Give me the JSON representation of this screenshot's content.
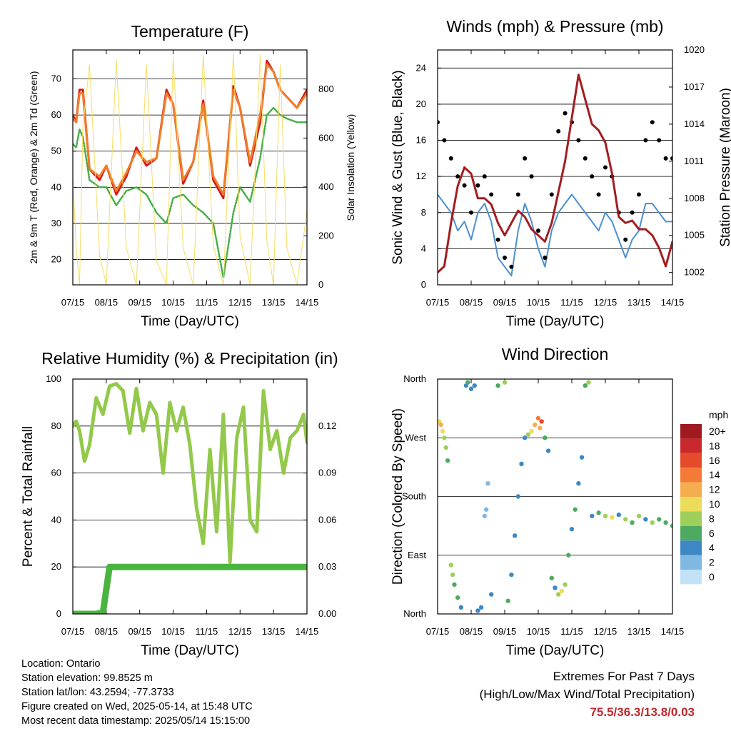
{
  "chart_data": [
    {
      "type": "line",
      "title": "Temperature (F)",
      "xlabel": "Time (Day/UTC)",
      "ylabel": "2m & 9m T (Red, Orange) & 2m Td (Green)",
      "ylabel_right": "Solar Insolation (Yellow)",
      "ylim": [
        13,
        78
      ],
      "ylim_right": [
        0,
        960
      ],
      "x_ticks": [
        "07/15",
        "08/15",
        "09/15",
        "10/15",
        "11/15",
        "12/15",
        "13/15",
        "14/15"
      ],
      "y_ticks": [
        20,
        30,
        40,
        50,
        60,
        70
      ],
      "y_ticks_right": [
        0,
        200,
        400,
        600,
        800
      ],
      "x": [
        0,
        0.1,
        0.2,
        0.3,
        0.5,
        0.8,
        1.0,
        1.3,
        1.6,
        1.9,
        2.2,
        2.5,
        2.8,
        3.0,
        3.3,
        3.6,
        3.9,
        4.2,
        4.5,
        4.8,
        5.0,
        5.3,
        5.6,
        5.8,
        6.0,
        6.2,
        6.4,
        6.7,
        7.0
      ],
      "series": [
        {
          "name": "2m T",
          "color": "#d7191c",
          "values": [
            60,
            58,
            67,
            67,
            45,
            42,
            46,
            38,
            43,
            51,
            46,
            48,
            67,
            63,
            41,
            47,
            64,
            42,
            37,
            68,
            62,
            46,
            58,
            75,
            72,
            67,
            65,
            62,
            67
          ]
        },
        {
          "name": "9m T",
          "color": "#f07d28",
          "values": [
            59,
            58,
            66,
            66,
            45,
            43,
            46,
            39,
            44,
            50,
            47,
            48,
            66,
            63,
            42,
            47,
            63,
            43,
            38,
            67,
            62,
            47,
            60,
            74,
            72,
            67,
            65,
            62,
            66
          ]
        },
        {
          "name": "2m Td",
          "color": "#45ad45",
          "values": [
            52,
            51,
            56,
            54,
            42,
            40,
            40,
            35,
            39,
            40,
            38,
            33,
            30,
            37,
            38,
            35,
            33,
            30,
            15,
            33,
            40,
            36,
            48,
            60,
            62,
            60,
            59,
            58,
            58
          ]
        },
        {
          "name": "Solar Insolation",
          "color": "#f5dc64",
          "axis": "right",
          "values": [
            450,
            150,
            0,
            650,
            900,
            120,
            0,
            920,
            150,
            0,
            900,
            100,
            0,
            930,
            150,
            0,
            940,
            160,
            0,
            950,
            200,
            0,
            940,
            180,
            0,
            900,
            150,
            0,
            300
          ]
        }
      ]
    },
    {
      "type": "line",
      "title": "Winds (mph) & Pressure (mb)",
      "xlabel": "Time (Day/UTC)",
      "ylabel": "Sonic Wind & Gust (Blue, Black)",
      "ylabel_right": "Station Pressure (Maroon)",
      "ylim": [
        0,
        26
      ],
      "ylim_right": [
        1001,
        1020
      ],
      "x_ticks": [
        "07/15",
        "08/15",
        "09/15",
        "10/15",
        "11/15",
        "12/15",
        "13/15",
        "14/15"
      ],
      "y_ticks": [
        0,
        4,
        8,
        12,
        16,
        20,
        24
      ],
      "y_ticks_right": [
        1002,
        1005,
        1008,
        1011,
        1014,
        1017,
        1020
      ],
      "x": [
        0,
        0.2,
        0.4,
        0.6,
        0.8,
        1.0,
        1.2,
        1.4,
        1.6,
        1.8,
        2.0,
        2.2,
        2.4,
        2.6,
        2.8,
        3.0,
        3.2,
        3.4,
        3.6,
        3.8,
        4.0,
        4.2,
        4.4,
        4.6,
        4.8,
        5.0,
        5.2,
        5.4,
        5.6,
        5.8,
        6.0,
        6.2,
        6.4,
        6.6,
        6.8,
        7.0
      ],
      "series": [
        {
          "name": "Sonic Wind",
          "color": "#4a90cf",
          "values": [
            10,
            9,
            8,
            6,
            7,
            5,
            8,
            9,
            7,
            3,
            2,
            1,
            6,
            9,
            7,
            4,
            2,
            6,
            8,
            9,
            10,
            9,
            8,
            7,
            6,
            8,
            7,
            5,
            3,
            5,
            6,
            9,
            9,
            8,
            7,
            7
          ]
        },
        {
          "name": "Gust",
          "color": "#000000",
          "values": [
            18,
            16,
            14,
            12,
            11,
            8,
            11,
            12,
            10,
            5,
            3,
            2,
            10,
            14,
            12,
            6,
            3,
            10,
            17,
            19,
            18,
            16,
            14,
            12,
            10,
            13,
            12,
            8,
            5,
            8,
            10,
            16,
            18,
            16,
            14,
            14
          ]
        },
        {
          "name": "Station Pressure",
          "color": "#a31d20",
          "axis": "right",
          "values": [
            1002,
            1002.5,
            1006,
            1009,
            1010.5,
            1010,
            1008,
            1008,
            1007.5,
            1006,
            1005,
            1006,
            1007,
            1006.5,
            1005.5,
            1005,
            1004.5,
            1006,
            1008.5,
            1011,
            1014.5,
            1018,
            1016,
            1014,
            1013.5,
            1012.5,
            1010,
            1006.5,
            1006,
            1006.2,
            1005.5,
            1005.5,
            1005,
            1004,
            1002.5,
            1004.5
          ]
        }
      ]
    },
    {
      "type": "line",
      "title": "Relative Humidity (%) & Precipitation (in)",
      "xlabel": "Time (Day/UTC)",
      "ylabel": "Percent & Total Rainfall",
      "ylim": [
        0,
        100
      ],
      "ylim_right": [
        0,
        0.15
      ],
      "x_ticks": [
        "07/15",
        "08/15",
        "09/15",
        "10/15",
        "11/15",
        "12/15",
        "13/15",
        "14/15"
      ],
      "y_ticks": [
        0,
        20,
        40,
        60,
        80,
        100
      ],
      "y_ticks_right": [
        "0.00",
        "0.03",
        "0.06",
        "0.09",
        "0.12"
      ],
      "x": [
        0,
        0.1,
        0.2,
        0.35,
        0.5,
        0.7,
        0.9,
        1.1,
        1.3,
        1.5,
        1.7,
        1.9,
        2.1,
        2.3,
        2.5,
        2.7,
        2.9,
        3.1,
        3.3,
        3.5,
        3.7,
        3.9,
        4.1,
        4.3,
        4.5,
        4.7,
        4.9,
        5.1,
        5.3,
        5.5,
        5.7,
        5.9,
        6.1,
        6.3,
        6.5,
        6.7,
        6.9,
        7.0
      ],
      "series": [
        {
          "name": "Relative Humidity",
          "color": "#93c94a",
          "values": [
            80,
            82,
            78,
            65,
            72,
            92,
            85,
            97,
            98,
            95,
            77,
            96,
            78,
            90,
            85,
            60,
            90,
            78,
            88,
            72,
            45,
            30,
            70,
            35,
            85,
            22,
            75,
            88,
            40,
            35,
            95,
            70,
            78,
            60,
            75,
            78,
            85,
            73
          ]
        },
        {
          "name": "Total Rainfall",
          "color": "#4bb441",
          "axis": "right",
          "values": [
            0,
            0,
            0,
            0,
            0,
            0,
            0.001,
            0.03,
            0.03,
            0.03,
            0.03,
            0.03,
            0.03,
            0.03,
            0.03,
            0.03,
            0.03,
            0.03,
            0.03,
            0.03,
            0.03,
            0.03,
            0.03,
            0.03,
            0.03,
            0.03,
            0.03,
            0.03,
            0.03,
            0.03,
            0.03,
            0.03,
            0.03,
            0.03,
            0.03,
            0.03,
            0.03,
            0.03
          ]
        }
      ]
    },
    {
      "type": "scatter",
      "title": "Wind Direction",
      "xlabel": "Time (Day/UTC)",
      "ylabel": "Direction (Colored By Speed)",
      "x_ticks": [
        "07/15",
        "08/15",
        "09/15",
        "10/15",
        "11/15",
        "12/15",
        "13/15",
        "14/15"
      ],
      "y_ticks": [
        "North",
        "East",
        "South",
        "West",
        "North"
      ],
      "ylim": [
        0,
        360
      ],
      "colorbar_unit": "mph",
      "colorbar_levels": [
        "20+",
        "18",
        "16",
        "14",
        "12",
        "10",
        "8",
        "6",
        "4",
        "2",
        "0"
      ],
      "colorbar_colors": [
        "#9e1a1e",
        "#c9282c",
        "#e54a2b",
        "#f47a35",
        "#f6ad4f",
        "#ecdc5a",
        "#9ecf5a",
        "#4eaa60",
        "#3d88c4",
        "#7fb8e3",
        "#c2e2f7"
      ],
      "points": [
        {
          "x": 0.05,
          "y": 295,
          "v": 10
        },
        {
          "x": 0.1,
          "y": 290,
          "v": 12
        },
        {
          "x": 0.15,
          "y": 280,
          "v": 9
        },
        {
          "x": 0.2,
          "y": 270,
          "v": 8
        },
        {
          "x": 0.25,
          "y": 255,
          "v": 7
        },
        {
          "x": 0.3,
          "y": 235,
          "v": 6
        },
        {
          "x": 0.4,
          "y": 75,
          "v": 7
        },
        {
          "x": 0.45,
          "y": 60,
          "v": 8
        },
        {
          "x": 0.5,
          "y": 45,
          "v": 6
        },
        {
          "x": 0.6,
          "y": 25,
          "v": 5
        },
        {
          "x": 0.7,
          "y": 10,
          "v": 4
        },
        {
          "x": 0.85,
          "y": 350,
          "v": 4
        },
        {
          "x": 0.9,
          "y": 355,
          "v": 5
        },
        {
          "x": 1.0,
          "y": 345,
          "v": 3
        },
        {
          "x": 1.1,
          "y": 350,
          "v": 4
        },
        {
          "x": 1.2,
          "y": 5,
          "v": 3
        },
        {
          "x": 1.3,
          "y": 10,
          "v": 4
        },
        {
          "x": 1.4,
          "y": 150,
          "v": 1
        },
        {
          "x": 1.45,
          "y": 160,
          "v": 1
        },
        {
          "x": 1.5,
          "y": 200,
          "v": 1
        },
        {
          "x": 1.6,
          "y": 30,
          "v": 3
        },
        {
          "x": 1.8,
          "y": 350,
          "v": 6
        },
        {
          "x": 2.0,
          "y": 355,
          "v": 7
        },
        {
          "x": 2.1,
          "y": 20,
          "v": 6
        },
        {
          "x": 2.2,
          "y": 60,
          "v": 4
        },
        {
          "x": 2.3,
          "y": 120,
          "v": 3
        },
        {
          "x": 2.4,
          "y": 180,
          "v": 3
        },
        {
          "x": 2.5,
          "y": 230,
          "v": 3
        },
        {
          "x": 2.6,
          "y": 270,
          "v": 4
        },
        {
          "x": 2.7,
          "y": 275,
          "v": 8
        },
        {
          "x": 2.8,
          "y": 280,
          "v": 10
        },
        {
          "x": 2.9,
          "y": 290,
          "v": 12
        },
        {
          "x": 3.0,
          "y": 300,
          "v": 14
        },
        {
          "x": 3.05,
          "y": 285,
          "v": 12
        },
        {
          "x": 3.1,
          "y": 295,
          "v": 16
        },
        {
          "x": 3.2,
          "y": 270,
          "v": 5
        },
        {
          "x": 3.3,
          "y": 250,
          "v": 4
        },
        {
          "x": 3.4,
          "y": 55,
          "v": 5
        },
        {
          "x": 3.5,
          "y": 40,
          "v": 4
        },
        {
          "x": 3.6,
          "y": 30,
          "v": 8
        },
        {
          "x": 3.7,
          "y": 35,
          "v": 10
        },
        {
          "x": 3.8,
          "y": 45,
          "v": 7
        },
        {
          "x": 3.9,
          "y": 90,
          "v": 6
        },
        {
          "x": 4.0,
          "y": 130,
          "v": 4
        },
        {
          "x": 4.1,
          "y": 160,
          "v": 5
        },
        {
          "x": 4.2,
          "y": 200,
          "v": 4
        },
        {
          "x": 4.3,
          "y": 240,
          "v": 3
        },
        {
          "x": 4.4,
          "y": 350,
          "v": 6
        },
        {
          "x": 4.5,
          "y": 355,
          "v": 7
        },
        {
          "x": 4.6,
          "y": 150,
          "v": 4
        },
        {
          "x": 4.8,
          "y": 155,
          "v": 6
        },
        {
          "x": 5.0,
          "y": 150,
          "v": 8
        },
        {
          "x": 5.2,
          "y": 148,
          "v": 9
        },
        {
          "x": 5.4,
          "y": 152,
          "v": 4
        },
        {
          "x": 5.6,
          "y": 145,
          "v": 7
        },
        {
          "x": 5.8,
          "y": 140,
          "v": 5
        },
        {
          "x": 6.0,
          "y": 150,
          "v": 8
        },
        {
          "x": 6.2,
          "y": 145,
          "v": 4
        },
        {
          "x": 6.4,
          "y": 140,
          "v": 7
        },
        {
          "x": 6.6,
          "y": 145,
          "v": 6
        },
        {
          "x": 6.8,
          "y": 140,
          "v": 5
        },
        {
          "x": 7.0,
          "y": 135,
          "v": 6
        }
      ]
    }
  ],
  "station_info": {
    "location": "Location: Ontario",
    "elevation": "Station elevation: 99.8525 m",
    "latlon": "Station lat/lon: 43.2594; -77.3733",
    "created": "Figure created on Wed, 2025-05-14, at 15:48 UTC",
    "latest": "Most recent data timestamp: 2025/05/14 15:15:00"
  },
  "extremes": {
    "line1": "Extremes For Past 7 Days",
    "line2": "(High/Low/Max Wind/Total Precipitation)",
    "values": "75.5/36.3/13.8/0.03"
  }
}
